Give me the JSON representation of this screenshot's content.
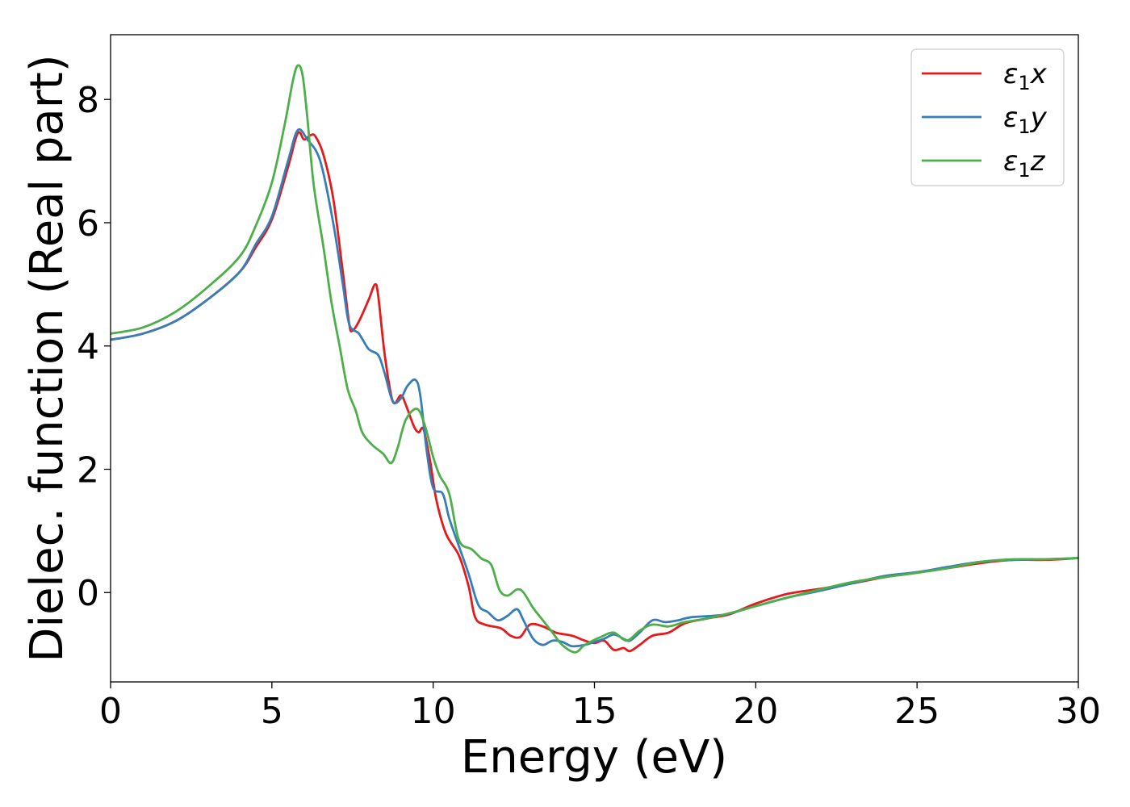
{
  "chart_data": {
    "type": "line",
    "title": "",
    "xlabel": "Energy (eV)",
    "ylabel": "Dielec. function (Real part)",
    "xlim": [
      0,
      30
    ],
    "ylim": [
      -1.45,
      9.05
    ],
    "xticks": [
      0,
      5,
      10,
      15,
      20,
      25,
      30
    ],
    "yticks": [
      0,
      2,
      4,
      6,
      8
    ],
    "grid": false,
    "legend_position": "top-right",
    "series": [
      {
        "name": "ε₁x",
        "legend_base": "ε",
        "legend_sub": "1",
        "legend_suffix": "x",
        "color": "#e41a1c",
        "points": [
          [
            0,
            4.1
          ],
          [
            1,
            4.2
          ],
          [
            2,
            4.4
          ],
          [
            3,
            4.75
          ],
          [
            4,
            5.2
          ],
          [
            4.5,
            5.6
          ],
          [
            5,
            6.05
          ],
          [
            5.5,
            6.9
          ],
          [
            5.8,
            7.45
          ],
          [
            6,
            7.35
          ],
          [
            6.2,
            7.42
          ],
          [
            6.35,
            7.4
          ],
          [
            6.6,
            7.1
          ],
          [
            6.9,
            6.4
          ],
          [
            7.2,
            5.2
          ],
          [
            7.4,
            4.35
          ],
          [
            7.5,
            4.25
          ],
          [
            7.7,
            4.4
          ],
          [
            8.0,
            4.75
          ],
          [
            8.2,
            5.0
          ],
          [
            8.3,
            4.8
          ],
          [
            8.5,
            3.85
          ],
          [
            8.75,
            3.1
          ],
          [
            9.0,
            3.2
          ],
          [
            9.15,
            3.05
          ],
          [
            9.4,
            2.7
          ],
          [
            9.55,
            2.6
          ],
          [
            9.7,
            2.65
          ],
          [
            9.9,
            2.15
          ],
          [
            10.1,
            1.5
          ],
          [
            10.4,
            0.95
          ],
          [
            10.8,
            0.6
          ],
          [
            11.1,
            0.1
          ],
          [
            11.3,
            -0.4
          ],
          [
            11.6,
            -0.52
          ],
          [
            12.1,
            -0.58
          ],
          [
            12.4,
            -0.7
          ],
          [
            12.7,
            -0.72
          ],
          [
            13.0,
            -0.52
          ],
          [
            13.4,
            -0.55
          ],
          [
            13.8,
            -0.65
          ],
          [
            14.3,
            -0.7
          ],
          [
            14.7,
            -0.78
          ],
          [
            15.0,
            -0.82
          ],
          [
            15.3,
            -0.78
          ],
          [
            15.6,
            -0.93
          ],
          [
            15.9,
            -0.9
          ],
          [
            16.1,
            -0.95
          ],
          [
            16.4,
            -0.85
          ],
          [
            16.8,
            -0.7
          ],
          [
            17.3,
            -0.65
          ],
          [
            17.8,
            -0.5
          ],
          [
            18.5,
            -0.42
          ],
          [
            19.2,
            -0.35
          ],
          [
            20,
            -0.18
          ],
          [
            21,
            -0.02
          ],
          [
            22,
            0.06
          ],
          [
            23,
            0.15
          ],
          [
            24,
            0.25
          ],
          [
            25,
            0.33
          ],
          [
            26,
            0.4
          ],
          [
            27,
            0.48
          ],
          [
            28,
            0.53
          ],
          [
            29,
            0.53
          ],
          [
            30,
            0.56
          ]
        ]
      },
      {
        "name": "ε₁y",
        "legend_base": "ε",
        "legend_sub": "1",
        "legend_suffix": "y",
        "color": "#377eb8",
        "points": [
          [
            0,
            4.1
          ],
          [
            1,
            4.2
          ],
          [
            2,
            4.4
          ],
          [
            3,
            4.75
          ],
          [
            4,
            5.2
          ],
          [
            4.5,
            5.65
          ],
          [
            5,
            6.1
          ],
          [
            5.5,
            7.0
          ],
          [
            5.8,
            7.5
          ],
          [
            6.1,
            7.35
          ],
          [
            6.5,
            7.0
          ],
          [
            6.9,
            6.0
          ],
          [
            7.2,
            5.0
          ],
          [
            7.4,
            4.35
          ],
          [
            7.7,
            4.2
          ],
          [
            8.0,
            3.95
          ],
          [
            8.3,
            3.85
          ],
          [
            8.5,
            3.55
          ],
          [
            8.75,
            3.1
          ],
          [
            9.0,
            3.15
          ],
          [
            9.2,
            3.35
          ],
          [
            9.45,
            3.45
          ],
          [
            9.6,
            3.2
          ],
          [
            9.8,
            2.3
          ],
          [
            10.0,
            1.7
          ],
          [
            10.3,
            1.6
          ],
          [
            10.5,
            1.2
          ],
          [
            10.8,
            0.75
          ],
          [
            11.1,
            0.3
          ],
          [
            11.4,
            -0.2
          ],
          [
            11.7,
            -0.32
          ],
          [
            12.0,
            -0.45
          ],
          [
            12.3,
            -0.38
          ],
          [
            12.6,
            -0.27
          ],
          [
            12.8,
            -0.45
          ],
          [
            13.1,
            -0.75
          ],
          [
            13.4,
            -0.85
          ],
          [
            13.7,
            -0.78
          ],
          [
            14.0,
            -0.8
          ],
          [
            14.3,
            -0.87
          ],
          [
            14.7,
            -0.85
          ],
          [
            15.0,
            -0.8
          ],
          [
            15.3,
            -0.75
          ],
          [
            15.6,
            -0.68
          ],
          [
            15.9,
            -0.75
          ],
          [
            16.1,
            -0.78
          ],
          [
            16.4,
            -0.65
          ],
          [
            16.8,
            -0.45
          ],
          [
            17.2,
            -0.48
          ],
          [
            17.6,
            -0.45
          ],
          [
            18.0,
            -0.4
          ],
          [
            19.0,
            -0.36
          ],
          [
            20,
            -0.22
          ],
          [
            21,
            -0.08
          ],
          [
            22,
            0.03
          ],
          [
            23,
            0.15
          ],
          [
            24,
            0.27
          ],
          [
            25,
            0.33
          ],
          [
            26,
            0.42
          ],
          [
            27,
            0.5
          ],
          [
            28,
            0.53
          ],
          [
            29,
            0.54
          ],
          [
            30,
            0.56
          ]
        ]
      },
      {
        "name": "ε₁z",
        "legend_base": "ε",
        "legend_sub": "1",
        "legend_suffix": "z",
        "color": "#4daf4a",
        "points": [
          [
            0,
            4.2
          ],
          [
            1,
            4.3
          ],
          [
            2,
            4.55
          ],
          [
            3,
            4.95
          ],
          [
            4,
            5.45
          ],
          [
            4.5,
            5.95
          ],
          [
            5,
            6.65
          ],
          [
            5.4,
            7.6
          ],
          [
            5.65,
            8.3
          ],
          [
            5.8,
            8.55
          ],
          [
            5.95,
            8.4
          ],
          [
            6.1,
            7.7
          ],
          [
            6.3,
            6.6
          ],
          [
            6.6,
            5.6
          ],
          [
            6.85,
            4.7
          ],
          [
            7.1,
            4.0
          ],
          [
            7.35,
            3.3
          ],
          [
            7.6,
            2.95
          ],
          [
            7.8,
            2.6
          ],
          [
            8.1,
            2.4
          ],
          [
            8.45,
            2.25
          ],
          [
            8.7,
            2.1
          ],
          [
            8.9,
            2.35
          ],
          [
            9.15,
            2.8
          ],
          [
            9.5,
            2.98
          ],
          [
            9.75,
            2.7
          ],
          [
            10.0,
            2.2
          ],
          [
            10.2,
            1.9
          ],
          [
            10.5,
            1.6
          ],
          [
            10.8,
            0.85
          ],
          [
            11.2,
            0.7
          ],
          [
            11.5,
            0.55
          ],
          [
            11.8,
            0.45
          ],
          [
            12.05,
            0.05
          ],
          [
            12.3,
            -0.05
          ],
          [
            12.6,
            0.05
          ],
          [
            12.8,
            0.0
          ],
          [
            13.1,
            -0.25
          ],
          [
            13.4,
            -0.45
          ],
          [
            13.7,
            -0.65
          ],
          [
            14.0,
            -0.85
          ],
          [
            14.4,
            -0.97
          ],
          [
            14.7,
            -0.85
          ],
          [
            15.2,
            -0.72
          ],
          [
            15.6,
            -0.65
          ],
          [
            16.0,
            -0.78
          ],
          [
            16.4,
            -0.62
          ],
          [
            16.8,
            -0.52
          ],
          [
            17.3,
            -0.55
          ],
          [
            17.8,
            -0.48
          ],
          [
            18.5,
            -0.42
          ],
          [
            19.3,
            -0.32
          ],
          [
            20,
            -0.22
          ],
          [
            21,
            -0.08
          ],
          [
            22,
            0.05
          ],
          [
            23,
            0.17
          ],
          [
            24,
            0.25
          ],
          [
            25,
            0.32
          ],
          [
            26,
            0.4
          ],
          [
            27,
            0.5
          ],
          [
            28,
            0.54
          ],
          [
            29,
            0.54
          ],
          [
            30,
            0.56
          ]
        ]
      }
    ]
  }
}
